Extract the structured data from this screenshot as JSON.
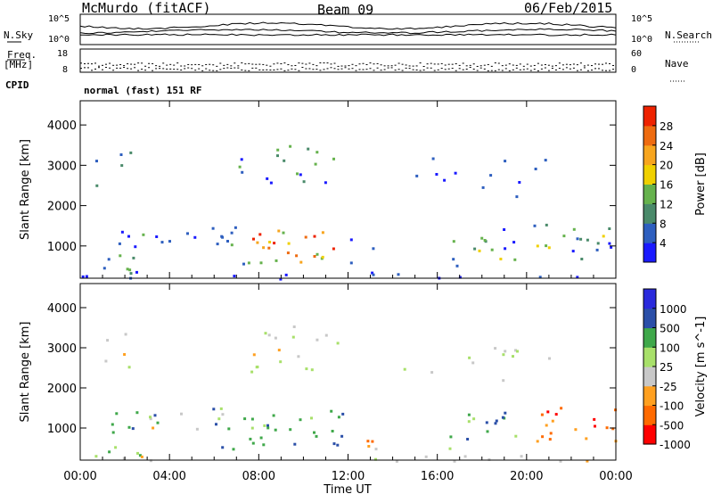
{
  "header": {
    "station": "McMurdo (fitACF)",
    "beam": "Beam 09",
    "date": "06/Feb/2015"
  },
  "top_panel": {
    "left_label": "N.Sky",
    "right_label": "N.Search",
    "left_ticks": [
      "10^5",
      "10^0"
    ],
    "right_ticks": [
      "10^5",
      "10^0"
    ]
  },
  "freq_panel": {
    "left_label_1": "Freq.",
    "left_label_2": "[MHz]",
    "left_ticks": [
      "18",
      "8"
    ],
    "right_label": "Nave",
    "right_ticks": [
      "60",
      "0"
    ]
  },
  "cpid": {
    "label": "CPID",
    "text": "normal (fast) 151 RF"
  },
  "colors": {
    "power": [
      "#1a1aff",
      "#2e5fbf",
      "#4a8a6a",
      "#66b24d",
      "#f0d000",
      "#f7a51e",
      "#ee6b10",
      "#ee2200"
    ],
    "velocity": [
      "#ff0000",
      "#ff6a00",
      "#ffa020",
      "#c8c8c8",
      "#a8e06a",
      "#3fa84a",
      "#2b4fa8",
      "#2a2adc"
    ]
  },
  "chart_data": [
    {
      "type": "heatmap",
      "ylabel": "Slant Range [km]",
      "xlabel": "",
      "x_ticks": [
        "00:00",
        "04:00",
        "08:00",
        "12:00",
        "16:00",
        "20:00",
        "00:00"
      ],
      "y_ticks": [
        "1000",
        "2000",
        "3000",
        "4000"
      ],
      "ylim": [
        200,
        4600
      ],
      "xlim_hours": [
        0,
        24
      ],
      "colorbar_label": "Power [dB]",
      "colorbar_ticks": [
        "4",
        "8",
        "12",
        "16",
        "20",
        "24",
        "28"
      ],
      "colorbar_range": [
        0,
        32
      ]
    },
    {
      "type": "heatmap",
      "ylabel": "Slant Range [km]",
      "xlabel": "Time UT",
      "x_ticks": [
        "00:00",
        "04:00",
        "08:00",
        "12:00",
        "16:00",
        "20:00",
        "00:00"
      ],
      "y_ticks": [
        "1000",
        "2000",
        "3000",
        "4000"
      ],
      "ylim": [
        200,
        4600
      ],
      "xlim_hours": [
        0,
        24
      ],
      "colorbar_label": "Velocity [m s^-1]",
      "colorbar_ticks": [
        "1000",
        "500",
        "100",
        "25",
        "-25",
        "-100",
        "-500",
        "-1000"
      ]
    }
  ]
}
